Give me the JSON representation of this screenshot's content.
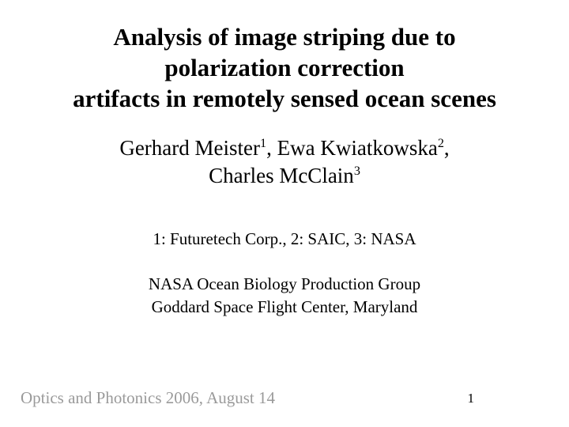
{
  "slide": {
    "background_color": "#ffffff",
    "text_color": "#000000",
    "footer_color": "#9a9a9a",
    "font_family": "Times New Roman",
    "title": {
      "line1": "Analysis of image striping due to",
      "line2": "polarization correction",
      "line3": "artifacts in remotely sensed ocean scenes",
      "fontsize": 31,
      "weight": "bold"
    },
    "authors": {
      "a1_name": "Gerhard Meister",
      "a1_sup": "1",
      "sep1": ", ",
      "a2_name": "Ewa Kwiatkowska",
      "a2_sup": "2",
      "sep2": ",",
      "a3_name": "Charles McClain",
      "a3_sup": "3",
      "fontsize": 27
    },
    "affiliations": {
      "text": "1: Futuretech Corp., 2: SAIC, 3: NASA",
      "fontsize": 21
    },
    "group": {
      "line1": "NASA Ocean Biology Production Group",
      "line2": "Goddard Space Flight Center, Maryland",
      "fontsize": 21
    },
    "footer": {
      "text": "Optics and Photonics 2006, August 14",
      "fontsize": 21
    },
    "page_number": "1"
  }
}
